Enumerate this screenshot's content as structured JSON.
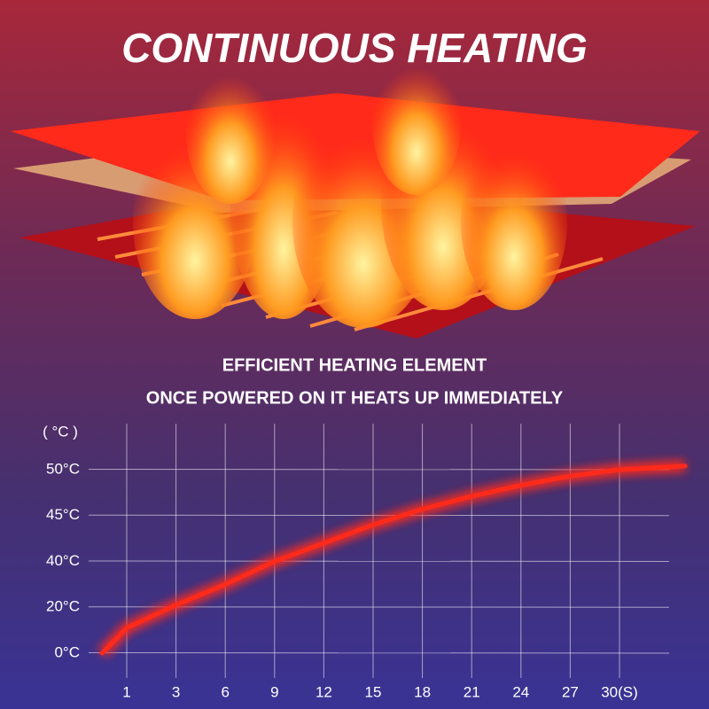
{
  "chart_data": {
    "type": "line",
    "title": "CONTINUOUS HEATING",
    "subtitle": [
      "EFFICIENT HEATING ELEMENT",
      "ONCE POWERED ON IT HEATS UP IMMEDIATELY"
    ],
    "y_label": "( °C )",
    "x": [
      0,
      1,
      3,
      6,
      9,
      12,
      15,
      18,
      21,
      24,
      27,
      30,
      34
    ],
    "values": [
      0,
      11,
      21,
      30,
      40,
      42,
      44,
      45.7,
      47.1,
      48.3,
      49.3,
      50,
      50.4
    ],
    "color": "#ff2a1a",
    "xlim": [
      0,
      34
    ],
    "xticks": [
      1,
      3,
      6,
      9,
      12,
      15,
      18,
      21,
      24,
      27,
      {
        "value": 30,
        "label": "30(S)"
      }
    ],
    "ylim": [
      0,
      55
    ],
    "yticks": [
      {
        "value": 0,
        "label": "0°C"
      },
      {
        "value": 20,
        "label": "20°C"
      },
      {
        "value": 40,
        "label": "40°C"
      },
      {
        "value": 45,
        "label": "45°C"
      },
      {
        "value": 50,
        "label": "50°C"
      }
    ],
    "scale": "tick-spaced",
    "grid": true
  }
}
